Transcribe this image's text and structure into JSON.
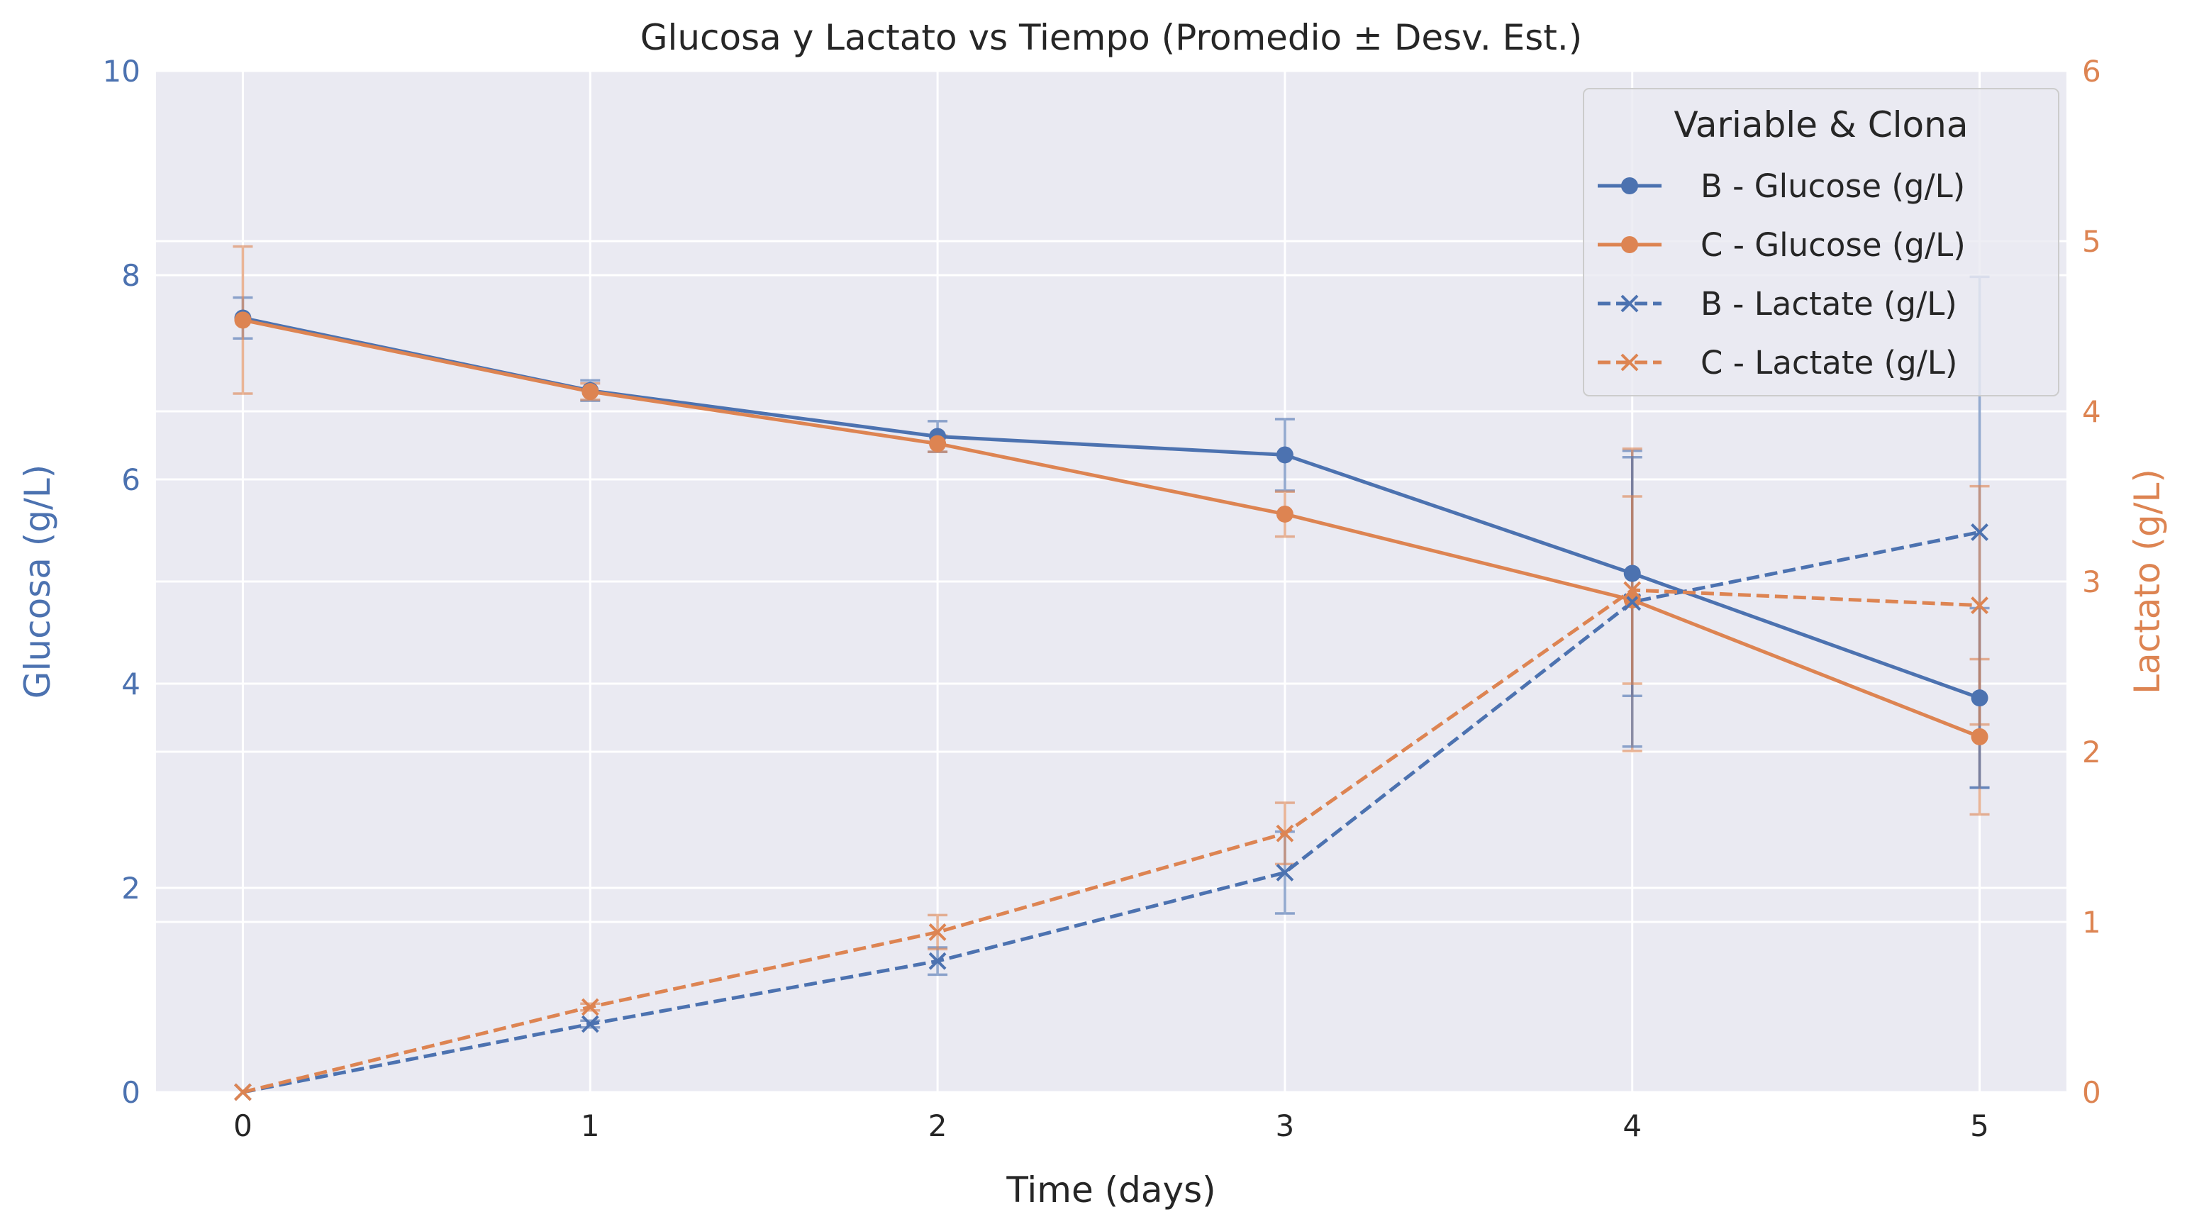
{
  "chart_data": {
    "type": "line",
    "title": "Glucosa y Lactato vs Tiempo (Promedio ± Desv. Est.)",
    "xlabel": "Time (days)",
    "ylabel_left": "Glucosa (g/L)",
    "ylabel_right": "Lactato (g/L)",
    "x": [
      0,
      1,
      2,
      3,
      4,
      5
    ],
    "xlim": [
      -0.25,
      5.25
    ],
    "ylim_left": [
      0,
      10
    ],
    "ylim_right": [
      0,
      6
    ],
    "x_ticks": [
      0,
      1,
      2,
      3,
      4,
      5
    ],
    "y_ticks_left": [
      0,
      2,
      4,
      6,
      8,
      10
    ],
    "y_ticks_right": [
      0,
      1,
      2,
      3,
      4,
      5,
      6
    ],
    "grid": true,
    "legend": {
      "title": "Variable & Clona",
      "position": "top-right"
    },
    "colors": {
      "left_axis": "#4c72b0",
      "right_axis": "#dd8452",
      "background": "#eaeaf2",
      "grid": "#ffffff"
    },
    "series": [
      {
        "name": "B - Glucose (g/L)",
        "axis": "left",
        "color": "#4c72b0",
        "marker": "circle",
        "dashed": false,
        "values": [
          7.58,
          6.87,
          6.42,
          6.24,
          5.08,
          3.86
        ],
        "errors": [
          0.2,
          0.1,
          0.15,
          0.35,
          1.2,
          0.88
        ]
      },
      {
        "name": "C - Glucose (g/L)",
        "axis": "left",
        "color": "#dd8452",
        "marker": "circle",
        "dashed": false,
        "values": [
          7.56,
          6.86,
          6.35,
          5.66,
          4.82,
          3.48
        ],
        "errors": [
          0.72,
          0.08,
          0.08,
          0.22,
          1.48,
          0.76
        ]
      },
      {
        "name": "B - Lactate (g/L)",
        "axis": "right",
        "color": "#4c72b0",
        "marker": "x",
        "dashed": false,
        "values": [
          0.0,
          0.4,
          0.77,
          1.29,
          2.88,
          3.29
        ],
        "errors": [
          0.0,
          0.02,
          0.08,
          0.24,
          0.85,
          1.5
        ]
      },
      {
        "name": "C - Lactate (g/L)",
        "axis": "right",
        "color": "#dd8452",
        "marker": "x",
        "dashed": false,
        "values": [
          0.0,
          0.5,
          0.94,
          1.52,
          2.95,
          2.86
        ],
        "errors": [
          0.0,
          0.02,
          0.1,
          0.18,
          0.55,
          0.7
        ]
      }
    ]
  }
}
